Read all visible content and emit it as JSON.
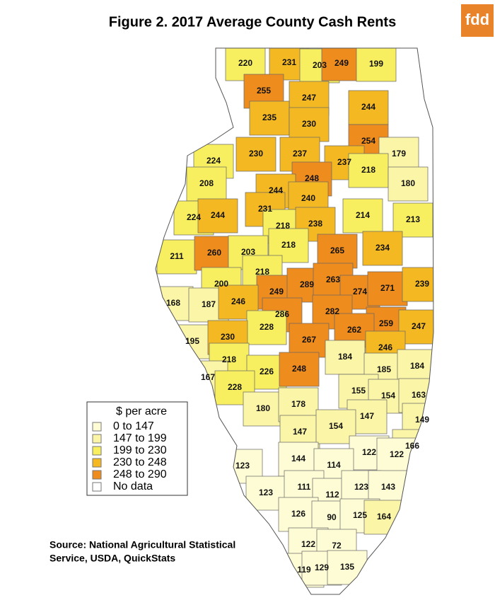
{
  "title": "Figure 2. 2017 Average County Cash Rents",
  "logo": "fdd",
  "legend": {
    "title": "$ per acre",
    "items": [
      {
        "label": "0 to 147",
        "color": "#fdfcd5",
        "range": [
          0,
          147
        ]
      },
      {
        "label": "147 to 199",
        "color": "#fbf5a8",
        "range": [
          147,
          199
        ]
      },
      {
        "label": "199 to 230",
        "color": "#f8ef60",
        "range": [
          199,
          230
        ]
      },
      {
        "label": "230 to 248",
        "color": "#f4b823",
        "range": [
          230,
          248
        ]
      },
      {
        "label": "248 to 290",
        "color": "#ef8c1e",
        "range": [
          248,
          290
        ]
      },
      {
        "label": "No data",
        "color": "#ffffff"
      }
    ]
  },
  "counties": [
    220,
    231,
    203,
    249,
    199,
    255,
    247,
    244,
    235,
    230,
    254,
    230,
    237,
    237,
    224,
    179,
    248,
    218,
    208,
    244,
    240,
    180,
    224,
    244,
    231,
    214,
    213,
    218,
    238,
    265,
    234,
    211,
    260,
    203,
    218,
    218,
    200,
    168,
    187,
    249,
    289,
    263,
    274,
    271,
    239,
    246,
    286,
    282,
    259,
    247,
    195,
    228,
    230,
    262,
    267,
    184,
    246,
    218,
    226,
    248,
    185,
    184,
    167,
    228,
    155,
    154,
    163,
    180,
    178,
    147,
    147,
    154,
    149,
    122,
    166,
    122,
    123,
    144,
    114,
    123,
    111,
    112,
    123,
    143,
    126,
    90,
    125,
    164,
    122,
    72,
    119,
    129,
    135
  ],
  "source": [
    "Source:  National Agricultural Statistical",
    "Service, USDA, QuickStats"
  ]
}
